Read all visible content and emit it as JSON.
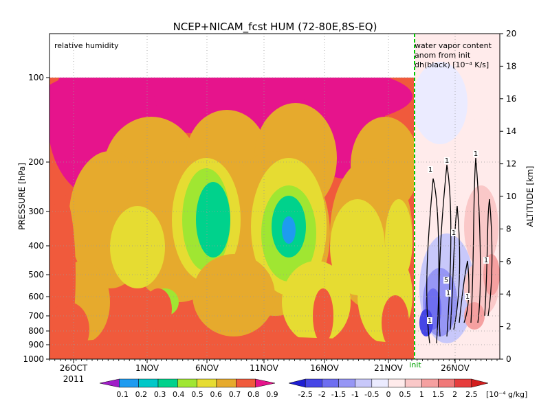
{
  "chart_data": {
    "type": "heatmap",
    "title": "NCEP+NICAM_fcst HUM (72-80E,8S-EQ)",
    "left_panel_label": "relative humidity",
    "right_panel_label_lines": [
      "water vapor content",
      "anom from init",
      "dh(black) [10⁻⁴ K/s]"
    ],
    "ylabel_left": "PRESSURE [hPa]",
    "ylabel_right": "ALTITUDE [km]",
    "pressure_ticks": [
      "100",
      "200",
      "300",
      "400",
      "500",
      "600",
      "700",
      "800",
      "900",
      "1000"
    ],
    "altitude_ticks": [
      "0",
      "2",
      "4",
      "6",
      "8",
      "10",
      "12",
      "14",
      "16",
      "18",
      "20"
    ],
    "x_ticks": [
      "26OCT",
      "1NOV",
      "6NOV",
      "11NOV",
      "16NOV",
      "21NOV",
      "26NOV"
    ],
    "x_year": "2011",
    "init_label": "init",
    "init_date": "23NOV",
    "humidity_levels": [
      "0.1",
      "0.2",
      "0.3",
      "0.4",
      "0.5",
      "0.6",
      "0.7",
      "0.8",
      "0.9"
    ],
    "humidity_colors": [
      "#a01ec8",
      "#1e9bf0",
      "#00c8c8",
      "#00d28c",
      "#a0e632",
      "#e6dc32",
      "#e6aa2d",
      "#f05a3c",
      "#e6148c"
    ],
    "anomaly_levels": [
      "-2.5",
      "-2",
      "-1.5",
      "-1",
      "-0.5",
      "0",
      "0.5",
      "1",
      "1.5",
      "2",
      "2.5"
    ],
    "anomaly_unit": "[10⁻⁴ g/kg]",
    "anomaly_colors": [
      "#1e1ed2",
      "#4646e6",
      "#6e6ef0",
      "#9696f5",
      "#c8c8fa",
      "#ebebff",
      "#ffebeb",
      "#fac8c8",
      "#f5a0a0",
      "#f07878",
      "#e63c3c",
      "#d21e1e"
    ],
    "contour_labels": [
      "1",
      "1",
      "1",
      "1",
      "5",
      "1",
      "1",
      "1",
      "1"
    ]
  }
}
